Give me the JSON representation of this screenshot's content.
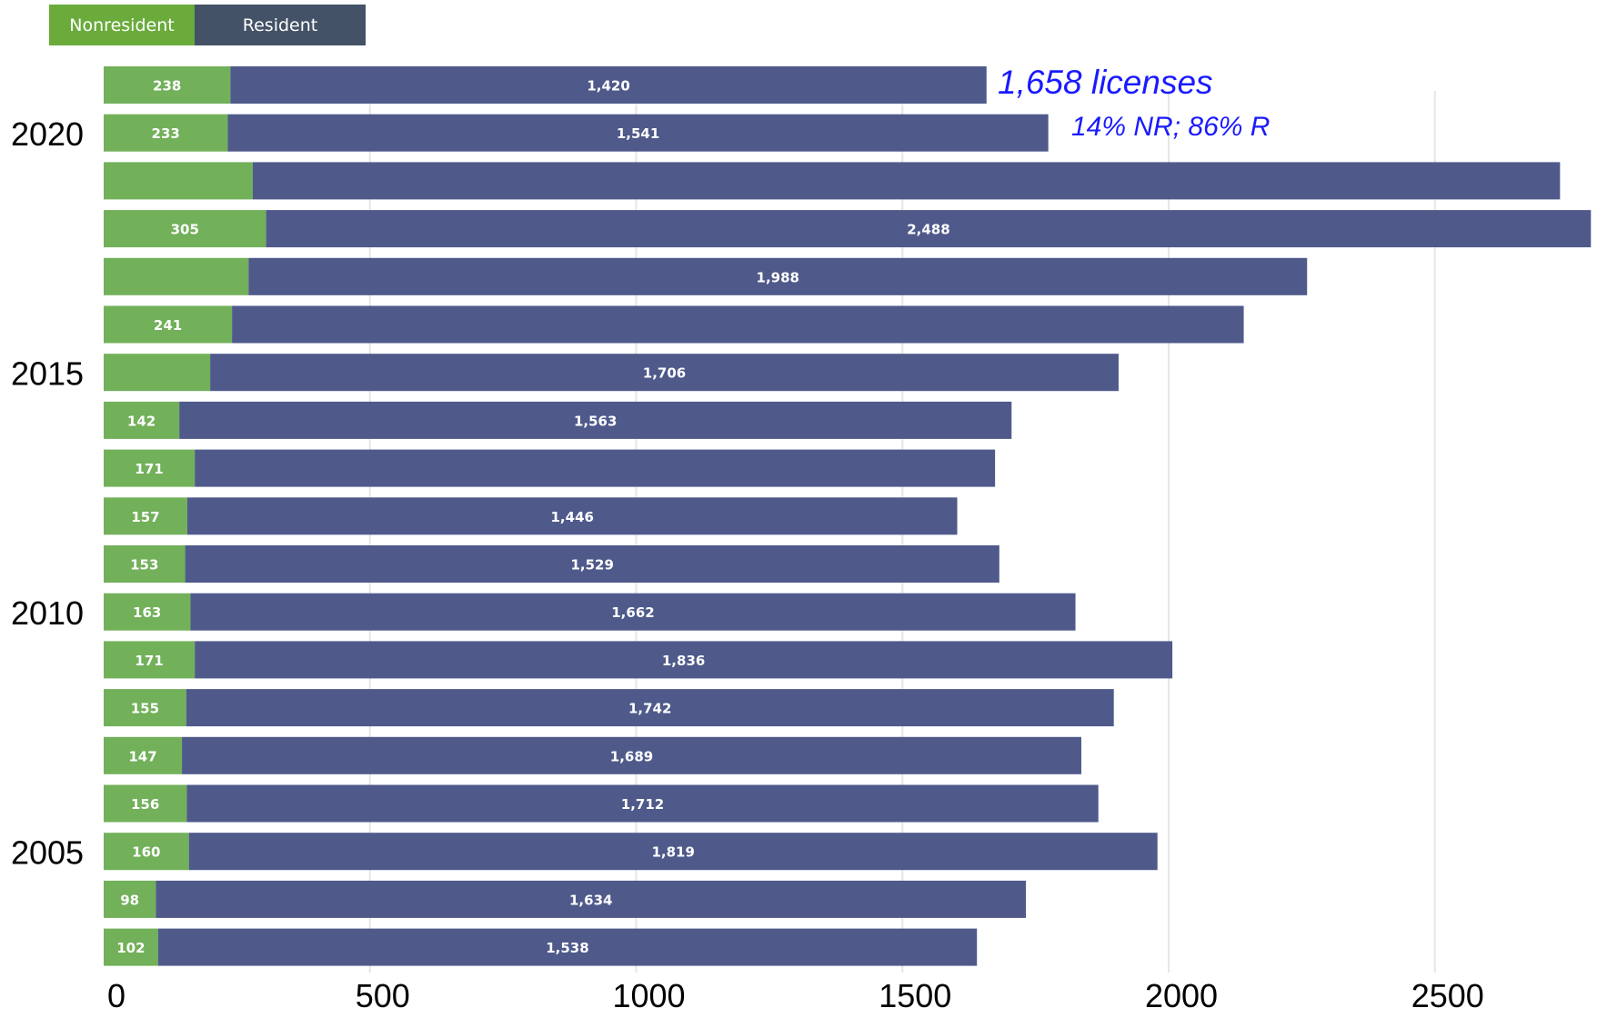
{
  "legend": {
    "nonresident_label": "Nonresident",
    "resident_label": "Resident",
    "nonresident_color": "#72b05a",
    "resident_color": "#4f5a8b",
    "nonresident_legend_color": "#6aab3c",
    "resident_legend_color": "#435266"
  },
  "annotations": {
    "total": "1,658 licenses",
    "split": "14% NR; 86% R"
  },
  "chart_data": {
    "type": "bar",
    "orientation": "horizontal",
    "stacked": true,
    "xlim": [
      0,
      2750
    ],
    "x_ticks": [
      "0",
      "500",
      "1000",
      "1500",
      "2000",
      "2500"
    ],
    "x_tick_values": [
      0,
      500,
      1000,
      1500,
      2000,
      2500
    ],
    "year_labels": [
      "2020",
      "2015",
      "2010",
      "2005"
    ],
    "year_label_rows": [
      1,
      6,
      11,
      16
    ],
    "grid": "vertical",
    "legend_position": "top-left",
    "series": [
      {
        "name": "Nonresident",
        "values": [
          238,
          233,
          280,
          305,
          272,
          241,
          200,
          142,
          171,
          157,
          153,
          163,
          171,
          155,
          147,
          156,
          160,
          98,
          102
        ],
        "labels": [
          "238",
          "233",
          "",
          "305",
          "",
          "241",
          "",
          "142",
          "171",
          "157",
          "153",
          "163",
          "171",
          "155",
          "147",
          "156",
          "160",
          "98",
          "102"
        ]
      },
      {
        "name": "Resident",
        "values": [
          1420,
          1541,
          2455,
          2488,
          1988,
          1900,
          1706,
          1563,
          1503,
          1446,
          1529,
          1662,
          1836,
          1742,
          1689,
          1712,
          1819,
          1634,
          1538
        ],
        "labels": [
          "1,420",
          "1,541",
          "",
          "2,488",
          "1,988",
          "",
          "1,706",
          "1,563",
          "",
          "1,446",
          "1,529",
          "1,662",
          "1,836",
          "1,742",
          "1,689",
          "1,712",
          "1,819",
          "1,634",
          "1,538"
        ]
      }
    ]
  }
}
